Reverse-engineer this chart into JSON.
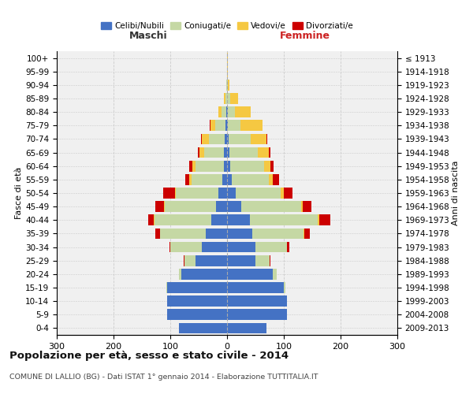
{
  "age_groups": [
    "0-4",
    "5-9",
    "10-14",
    "15-19",
    "20-24",
    "25-29",
    "30-34",
    "35-39",
    "40-44",
    "45-49",
    "50-54",
    "55-59",
    "60-64",
    "65-69",
    "70-74",
    "75-79",
    "80-84",
    "85-89",
    "90-94",
    "95-99",
    "100+"
  ],
  "birth_years": [
    "2009-2013",
    "2004-2008",
    "1999-2003",
    "1994-1998",
    "1989-1993",
    "1984-1988",
    "1979-1983",
    "1974-1978",
    "1969-1973",
    "1964-1968",
    "1959-1963",
    "1954-1958",
    "1949-1953",
    "1944-1948",
    "1939-1943",
    "1934-1938",
    "1929-1933",
    "1924-1928",
    "1919-1923",
    "1914-1918",
    "≤ 1913"
  ],
  "maschi_celibi": [
    85,
    105,
    105,
    105,
    80,
    55,
    45,
    38,
    28,
    20,
    15,
    8,
    6,
    5,
    4,
    3,
    2,
    0,
    0,
    0,
    0
  ],
  "maschi_coniugati": [
    0,
    0,
    0,
    2,
    5,
    20,
    55,
    80,
    100,
    90,
    75,
    55,
    50,
    35,
    28,
    18,
    8,
    3,
    1,
    0,
    0
  ],
  "maschi_vedovi": [
    0,
    0,
    0,
    0,
    0,
    0,
    0,
    0,
    1,
    1,
    2,
    3,
    5,
    8,
    12,
    8,
    5,
    2,
    0,
    0,
    0
  ],
  "maschi_divorziati": [
    0,
    0,
    0,
    0,
    0,
    1,
    2,
    8,
    10,
    15,
    20,
    8,
    5,
    3,
    2,
    1,
    0,
    0,
    0,
    0,
    0
  ],
  "femmine_celibi": [
    70,
    105,
    105,
    100,
    80,
    50,
    50,
    45,
    40,
    25,
    15,
    8,
    5,
    4,
    3,
    2,
    2,
    0,
    0,
    0,
    0
  ],
  "femmine_coniugati": [
    0,
    0,
    0,
    3,
    8,
    25,
    55,
    90,
    120,
    105,
    80,
    65,
    60,
    50,
    38,
    22,
    12,
    5,
    1,
    0,
    0
  ],
  "femmine_vedovi": [
    0,
    0,
    0,
    0,
    0,
    0,
    0,
    1,
    2,
    3,
    5,
    8,
    12,
    20,
    28,
    38,
    28,
    15,
    3,
    1,
    1
  ],
  "femmine_divorziati": [
    0,
    0,
    0,
    0,
    0,
    2,
    5,
    10,
    20,
    15,
    15,
    10,
    5,
    3,
    2,
    1,
    0,
    0,
    0,
    0,
    0
  ],
  "colors": {
    "celibi": "#4472C4",
    "coniugati": "#C5D8A4",
    "vedovi": "#F5C842",
    "divorziati": "#CC0000"
  },
  "xlim": 300,
  "title": "Popolazione per età, sesso e stato civile - 2014",
  "subtitle": "COMUNE DI LALLIO (BG) - Dati ISTAT 1° gennaio 2014 - Elaborazione TUTTITALIA.IT",
  "ylabel_left": "Fasce di età",
  "ylabel_right": "Anni di nascita",
  "xlabel_left": "Maschi",
  "xlabel_right": "Femmine",
  "legend_labels": [
    "Celibi/Nubili",
    "Coniugati/e",
    "Vedovi/e",
    "Divorziati/e"
  ],
  "background_color": "#ffffff",
  "grid_color": "#cccccc"
}
